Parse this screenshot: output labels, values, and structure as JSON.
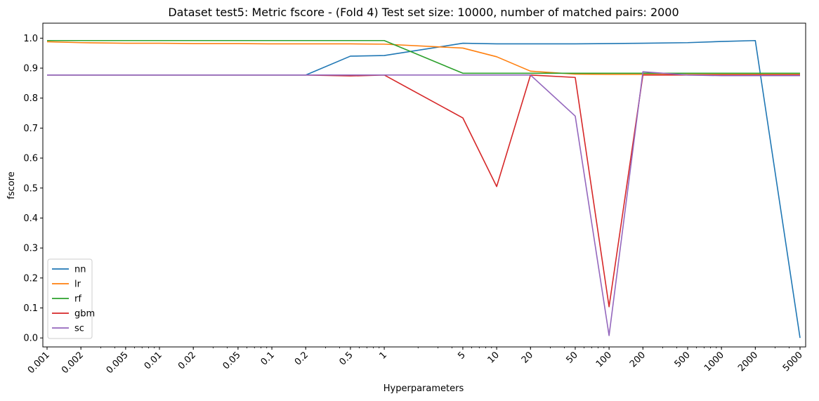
{
  "chart_data": {
    "type": "line",
    "title": "Dataset test5: Metric fscore - (Fold 4) Test set size: 10000, number of matched pairs: 2000",
    "xlabel": "Hyperparameters",
    "ylabel": "fscore",
    "x_scale": "log",
    "x": [
      0.001,
      0.002,
      0.005,
      0.01,
      0.02,
      0.05,
      0.1,
      0.2,
      0.5,
      1,
      5,
      10,
      20,
      50,
      100,
      200,
      500,
      1000,
      2000,
      5000
    ],
    "x_tick_labels": [
      "0.001",
      "0.002",
      "0.005",
      "0.01",
      "0.02",
      "0.05",
      "0.1",
      "0.2",
      "0.5",
      "1",
      "5",
      "10",
      "20",
      "50",
      "100",
      "200",
      "500",
      "1000",
      "2000",
      "5000"
    ],
    "ylim": [
      -0.03,
      1.05
    ],
    "y_ticks": [
      0.0,
      0.1,
      0.2,
      0.3,
      0.4,
      0.5,
      0.6,
      0.7,
      0.8,
      0.9,
      1.0
    ],
    "y_tick_labels": [
      "0.0",
      "0.1",
      "0.2",
      "0.3",
      "0.4",
      "0.5",
      "0.6",
      "0.7",
      "0.8",
      "0.9",
      "1.0"
    ],
    "grid": false,
    "legend_position": "lower-left",
    "series": [
      {
        "name": "nn",
        "color": "#1f77b4",
        "values": [
          0.877,
          0.877,
          0.877,
          0.877,
          0.877,
          0.877,
          0.877,
          0.877,
          0.94,
          0.942,
          0.983,
          0.981,
          0.981,
          0.981,
          0.982,
          0.983,
          0.985,
          0.989,
          0.992,
          0.0
        ]
      },
      {
        "name": "lr",
        "color": "#ff7f0e",
        "values": [
          0.988,
          0.985,
          0.983,
          0.983,
          0.982,
          0.982,
          0.981,
          0.981,
          0.981,
          0.98,
          0.967,
          0.938,
          0.89,
          0.88,
          0.879,
          0.879,
          0.879,
          0.879,
          0.879,
          0.879
        ]
      },
      {
        "name": "rf",
        "color": "#2ca02c",
        "values": [
          0.992,
          0.992,
          0.992,
          0.992,
          0.992,
          0.992,
          0.992,
          0.992,
          0.992,
          0.992,
          0.883,
          0.883,
          0.883,
          0.883,
          0.883,
          0.883,
          0.883,
          0.883,
          0.883,
          0.883
        ]
      },
      {
        "name": "gbm",
        "color": "#d62728",
        "values": [
          0.877,
          0.877,
          0.877,
          0.877,
          0.877,
          0.877,
          0.877,
          0.877,
          0.874,
          0.877,
          0.734,
          0.505,
          0.877,
          0.869,
          0.104,
          0.877,
          0.877,
          0.877,
          0.877,
          0.877
        ]
      },
      {
        "name": "sc",
        "color": "#9467bd",
        "values": [
          0.877,
          0.877,
          0.877,
          0.877,
          0.877,
          0.877,
          0.877,
          0.877,
          0.877,
          0.877,
          0.877,
          0.877,
          0.877,
          0.74,
          0.008,
          0.888,
          0.877,
          0.875,
          0.875,
          0.875
        ]
      }
    ]
  }
}
